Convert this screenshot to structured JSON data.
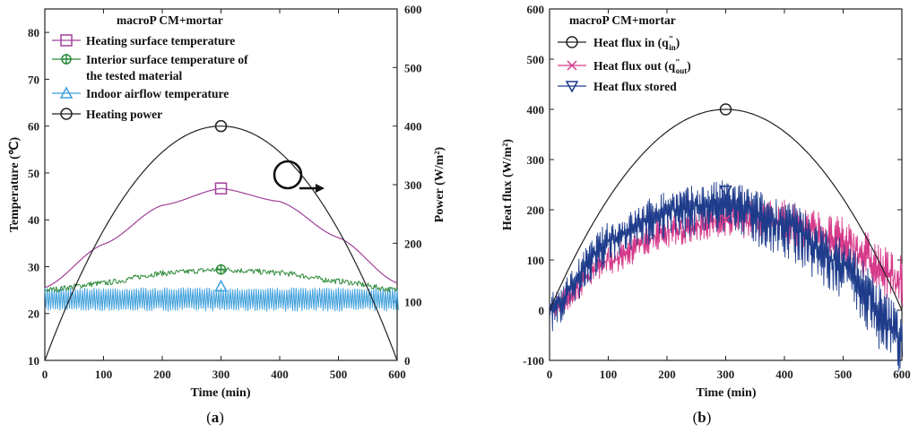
{
  "chart_data": [
    {
      "type": "line",
      "panel_label": "a",
      "title": "macroP CM+mortar",
      "xlabel": "Time (min)",
      "ylabel": "Temperature (℃)",
      "y2label": "Power (W/m²)",
      "xlim": [
        0,
        600
      ],
      "ylim": [
        10,
        85
      ],
      "y2lim": [
        0,
        600
      ],
      "xticks": [
        "0",
        "100",
        "200",
        "300",
        "400",
        "500",
        "600"
      ],
      "yticks": [
        "10",
        "20",
        "30",
        "40",
        "50",
        "60",
        "70",
        "80"
      ],
      "y2ticks": [
        "0",
        "100",
        "200",
        "300",
        "400",
        "500",
        "600"
      ],
      "legend": [
        {
          "label": "Heating surface temperature",
          "marker": "square",
          "color": "#a0409a"
        },
        {
          "label": "Interior surface temperature of",
          "label2": "the tested material",
          "marker": "cross",
          "color": "#2e8b3a"
        },
        {
          "label": "Indoor airflow temperature",
          "marker": "triangle",
          "color": "#3fa0dc"
        },
        {
          "label": "Heating power",
          "marker": "circle",
          "color": "#222222"
        }
      ],
      "legend_position": "top-left",
      "series": [
        {
          "name": "Heating surface temperature",
          "axis": "left",
          "x": [
            0,
            100,
            200,
            300,
            400,
            500,
            600
          ],
          "y": [
            25.5,
            34.8,
            43.1,
            46.7,
            43.9,
            36.2,
            26.5
          ]
        },
        {
          "name": "Interior surface temperature of the tested material",
          "axis": "left",
          "x": [
            0,
            100,
            200,
            300,
            400,
            500,
            600
          ],
          "y": [
            25.0,
            26.5,
            28.6,
            29.4,
            28.7,
            26.9,
            25.0
          ],
          "noise": 0.6
        },
        {
          "name": "Indoor airflow temperature",
          "axis": "left",
          "x": [
            0,
            600
          ],
          "y": [
            23.5,
            23.5
          ],
          "oscillation": [
            20.5,
            25.5
          ]
        },
        {
          "name": "Heating power",
          "axis": "right",
          "x": [
            0,
            100,
            200,
            300,
            400,
            500,
            600
          ],
          "y": [
            0,
            222,
            356,
            400,
            356,
            222,
            0
          ]
        }
      ],
      "annotation": "circle with right arrow pointing to right axis"
    },
    {
      "type": "line",
      "panel_label": "b",
      "title": "macroP CM+mortar",
      "xlabel": "Time (min)",
      "ylabel": "Heat flux (W/m²)",
      "xlim": [
        0,
        600
      ],
      "ylim": [
        -100,
        600
      ],
      "xticks": [
        "0",
        "100",
        "200",
        "300",
        "400",
        "500",
        "600"
      ],
      "yticks": [
        "-100",
        "0",
        "100",
        "200",
        "300",
        "400",
        "500",
        "600"
      ],
      "legend": [
        {
          "label": "Heat flux in (q",
          "sub": "in",
          "marker": "circle",
          "color": "#222222"
        },
        {
          "label": "Heat flux out (q",
          "sub": "out",
          "marker": "x",
          "color": "#d63a8a"
        },
        {
          "label": "Heat flux stored",
          "marker": "triangle-down",
          "color": "#1f3c8c"
        }
      ],
      "legend_position": "top-left",
      "series": [
        {
          "name": "Heat flux in (q\"in)",
          "x": [
            0,
            100,
            200,
            300,
            400,
            500,
            600
          ],
          "y": [
            0,
            222,
            356,
            400,
            356,
            222,
            0
          ]
        },
        {
          "name": "Heat flux out (q\"out)",
          "x": [
            0,
            100,
            200,
            300,
            400,
            500,
            600
          ],
          "y": [
            0,
            100,
            160,
            185,
            180,
            140,
            60
          ],
          "noise": 45
        },
        {
          "name": "Heat flux stored",
          "x": [
            0,
            100,
            200,
            300,
            400,
            500,
            600
          ],
          "y": [
            0,
            140,
            200,
            215,
            175,
            90,
            -50
          ],
          "noise": 55
        }
      ]
    }
  ],
  "captions": {
    "a": "a",
    "b": "b"
  }
}
